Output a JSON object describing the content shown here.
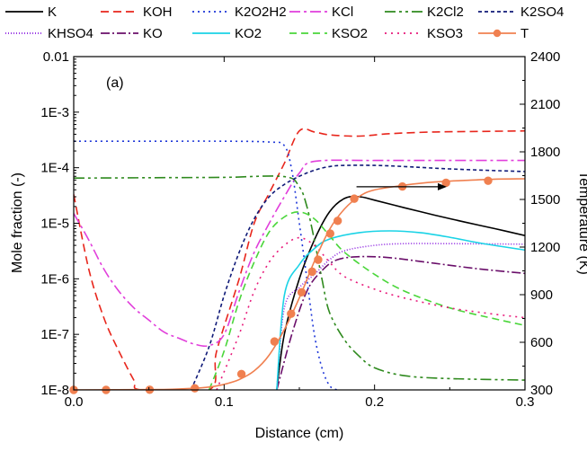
{
  "chart_data": {
    "type": "line",
    "panel_label": "(a)",
    "xlabel": "Distance (cm)",
    "ylabel": "Mole fraction (-)",
    "y2label": "Temperature (K)",
    "xlim": [
      0.0,
      0.3
    ],
    "ylim": [
      1e-08,
      0.01
    ],
    "y_scale": "log",
    "y2lim": [
      300,
      2400
    ],
    "x_ticks": [
      "0.0",
      "0.1",
      "0.2",
      "0.3"
    ],
    "y_ticks": [
      "1E-8",
      "1E-7",
      "1E-6",
      "1E-5",
      "1E-4",
      "1E-3",
      "0.01"
    ],
    "y2_ticks": [
      "300",
      "600",
      "900",
      "1200",
      "1500",
      "1800",
      "2100",
      "2400"
    ],
    "grid": false,
    "legend_position": "top, above plot",
    "series": [
      {
        "name": "K",
        "color": "#000000",
        "dash": "",
        "marker": false,
        "axis": "left",
        "points": [
          [
            0.135,
            1e-08
          ],
          [
            0.14,
            1e-07
          ],
          [
            0.15,
            1e-06
          ],
          [
            0.16,
            5e-06
          ],
          [
            0.17,
            1.6e-05
          ],
          [
            0.18,
            2.8e-05
          ],
          [
            0.19,
            3e-05
          ],
          [
            0.2,
            2.6e-05
          ],
          [
            0.22,
            1.9e-05
          ],
          [
            0.24,
            1.4e-05
          ],
          [
            0.26,
            1.05e-05
          ],
          [
            0.28,
            8e-06
          ],
          [
            0.3,
            6e-06
          ]
        ]
      },
      {
        "name": "KOH",
        "color": "#e8261c",
        "dash": "9,5",
        "marker": false,
        "axis": "left",
        "points": [
          [
            0.0,
            3.3e-05
          ],
          [
            0.01,
            1.5e-06
          ],
          [
            0.02,
            2e-07
          ],
          [
            0.03,
            5e-08
          ],
          [
            0.04,
            1.5e-08
          ],
          [
            0.045,
            1e-08
          ],
          [
            0.09,
            1e-08
          ],
          [
            0.095,
            5e-08
          ],
          [
            0.11,
            1e-06
          ],
          [
            0.12,
            1e-05
          ],
          [
            0.13,
            3.5e-05
          ],
          [
            0.14,
            0.00012
          ],
          [
            0.15,
            0.00046
          ],
          [
            0.16,
            0.00044
          ],
          [
            0.17,
            0.00039
          ],
          [
            0.19,
            0.00037
          ],
          [
            0.21,
            0.00041
          ],
          [
            0.24,
            0.00044
          ],
          [
            0.27,
            0.00045
          ],
          [
            0.3,
            0.00046
          ]
        ]
      },
      {
        "name": "K2O2H2",
        "color": "#1c35d8",
        "dash": "2,4",
        "marker": false,
        "axis": "left",
        "points": [
          [
            0.0,
            0.0003
          ],
          [
            0.05,
            0.0003
          ],
          [
            0.1,
            0.0003
          ],
          [
            0.13,
            0.00029
          ],
          [
            0.14,
            0.00025
          ],
          [
            0.145,
            9e-05
          ],
          [
            0.15,
            1e-05
          ],
          [
            0.155,
            1e-06
          ],
          [
            0.16,
            1e-07
          ],
          [
            0.165,
            2.5e-08
          ],
          [
            0.17,
            1.2e-08
          ],
          [
            0.175,
            1e-08
          ]
        ]
      },
      {
        "name": "KCl",
        "color": "#e13fdb",
        "dash": "12,4,3,4",
        "marker": false,
        "axis": "left",
        "points": [
          [
            0.0,
            1.5e-05
          ],
          [
            0.01,
            5e-06
          ],
          [
            0.02,
            1.5e-06
          ],
          [
            0.03,
            6e-07
          ],
          [
            0.04,
            3e-07
          ],
          [
            0.05,
            1.8e-07
          ],
          [
            0.06,
            1.1e-07
          ],
          [
            0.07,
            8.5e-08
          ],
          [
            0.08,
            6.7e-08
          ],
          [
            0.09,
            6.3e-08
          ],
          [
            0.1,
            1e-07
          ],
          [
            0.11,
            6e-07
          ],
          [
            0.12,
            3e-06
          ],
          [
            0.13,
            1e-05
          ],
          [
            0.14,
            3e-05
          ],
          [
            0.15,
            8e-05
          ],
          [
            0.16,
            0.00013
          ],
          [
            0.2,
            0.000135
          ],
          [
            0.25,
            0.000135
          ],
          [
            0.3,
            0.000135
          ]
        ]
      },
      {
        "name": "K2Cl2",
        "color": "#2f8a1e",
        "dash": "12,4,3,4,3,4",
        "marker": false,
        "axis": "left",
        "points": [
          [
            0.0,
            6.5e-05
          ],
          [
            0.05,
            6.6e-05
          ],
          [
            0.1,
            6.7e-05
          ],
          [
            0.14,
            6.9e-05
          ],
          [
            0.15,
            4.5e-05
          ],
          [
            0.155,
            2e-05
          ],
          [
            0.16,
            5e-06
          ],
          [
            0.165,
            1e-06
          ],
          [
            0.17,
            2.5e-07
          ],
          [
            0.18,
            8e-08
          ],
          [
            0.19,
            4e-08
          ],
          [
            0.2,
            2.5e-08
          ],
          [
            0.22,
            1.8e-08
          ],
          [
            0.25,
            1.6e-08
          ],
          [
            0.3,
            1.5e-08
          ]
        ]
      },
      {
        "name": "K2SO4",
        "color": "#101a78",
        "dash": "4,3",
        "marker": false,
        "axis": "left",
        "points": [
          [
            0.078,
            1e-08
          ],
          [
            0.09,
            6e-08
          ],
          [
            0.1,
            5e-07
          ],
          [
            0.11,
            3e-06
          ],
          [
            0.12,
            1.2e-05
          ],
          [
            0.13,
            3e-05
          ],
          [
            0.14,
            5e-05
          ],
          [
            0.15,
            7e-05
          ],
          [
            0.16,
            9e-05
          ],
          [
            0.17,
            0.000105
          ],
          [
            0.18,
            0.00011
          ],
          [
            0.2,
            0.00011
          ],
          [
            0.22,
            0.000105
          ],
          [
            0.25,
            9.5e-05
          ],
          [
            0.3,
            8.5e-05
          ]
        ]
      },
      {
        "name": "KHSO4",
        "color": "#8a1ce0",
        "dash": "1,2",
        "marker": false,
        "axis": "left",
        "points": [
          [
            0.135,
            1e-08
          ],
          [
            0.14,
            3e-07
          ],
          [
            0.15,
            7e-07
          ],
          [
            0.16,
            1.2e-06
          ],
          [
            0.17,
            2.2e-06
          ],
          [
            0.18,
            3.2e-06
          ],
          [
            0.2,
            4e-06
          ],
          [
            0.22,
            4.3e-06
          ],
          [
            0.25,
            4.3e-06
          ],
          [
            0.3,
            4.2e-06
          ]
        ]
      },
      {
        "name": "KO",
        "color": "#6a0e6a",
        "dash": "10,3,2,3",
        "marker": false,
        "axis": "left",
        "points": [
          [
            0.135,
            1e-08
          ],
          [
            0.145,
            1e-07
          ],
          [
            0.155,
            6e-07
          ],
          [
            0.165,
            1.4e-06
          ],
          [
            0.175,
            2.2e-06
          ],
          [
            0.19,
            2.5e-06
          ],
          [
            0.21,
            2.4e-06
          ],
          [
            0.24,
            1.9e-06
          ],
          [
            0.27,
            1.5e-06
          ],
          [
            0.3,
            1.25e-06
          ]
        ]
      },
      {
        "name": "KO2",
        "color": "#1ad3e6",
        "dash": "",
        "marker": false,
        "axis": "left",
        "points": [
          [
            0.135,
            1e-08
          ],
          [
            0.14,
            5e-07
          ],
          [
            0.15,
            1.8e-06
          ],
          [
            0.16,
            3.5e-06
          ],
          [
            0.17,
            5.2e-06
          ],
          [
            0.19,
            6.8e-06
          ],
          [
            0.21,
            7.3e-06
          ],
          [
            0.23,
            6.8e-06
          ],
          [
            0.25,
            5.6e-06
          ],
          [
            0.27,
            4.4e-06
          ],
          [
            0.3,
            3.3e-06
          ]
        ]
      },
      {
        "name": "KSO2",
        "color": "#4ad63a",
        "dash": "8,5",
        "marker": false,
        "axis": "left",
        "points": [
          [
            0.09,
            1e-08
          ],
          [
            0.1,
            5e-08
          ],
          [
            0.11,
            4e-07
          ],
          [
            0.12,
            2e-06
          ],
          [
            0.13,
            7e-06
          ],
          [
            0.14,
            1.3e-05
          ],
          [
            0.15,
            1.6e-05
          ],
          [
            0.16,
            1.2e-05
          ],
          [
            0.17,
            6e-06
          ],
          [
            0.18,
            3e-06
          ],
          [
            0.2,
            1.2e-06
          ],
          [
            0.22,
            6e-07
          ],
          [
            0.25,
            3e-07
          ],
          [
            0.28,
            1.9e-07
          ],
          [
            0.3,
            1.45e-07
          ]
        ]
      },
      {
        "name": "KSO3",
        "color": "#e8197a",
        "dash": "2,5",
        "marker": false,
        "axis": "left",
        "points": [
          [
            0.095,
            1e-08
          ],
          [
            0.11,
            1e-07
          ],
          [
            0.12,
            6e-07
          ],
          [
            0.13,
            2e-06
          ],
          [
            0.14,
            4e-06
          ],
          [
            0.15,
            5.5e-06
          ],
          [
            0.16,
            4e-06
          ],
          [
            0.17,
            2e-06
          ],
          [
            0.18,
            1.1e-06
          ],
          [
            0.2,
            6.5e-07
          ],
          [
            0.22,
            4.5e-07
          ],
          [
            0.25,
            3e-07
          ],
          [
            0.28,
            2.3e-07
          ],
          [
            0.3,
            2e-07
          ]
        ]
      },
      {
        "name": "T",
        "color": "#f08050",
        "dash": "",
        "marker": true,
        "axis": "right",
        "points": [
          [
            0.0,
            300
          ],
          [
            0.03,
            301
          ],
          [
            0.06,
            303
          ],
          [
            0.08,
            310
          ],
          [
            0.09,
            318
          ],
          [
            0.1,
            335
          ],
          [
            0.11,
            365
          ],
          [
            0.12,
            420
          ],
          [
            0.13,
            520
          ],
          [
            0.14,
            680
          ],
          [
            0.15,
            880
          ],
          [
            0.16,
            1110
          ],
          [
            0.17,
            1310
          ],
          [
            0.18,
            1440
          ],
          [
            0.19,
            1520
          ],
          [
            0.2,
            1560
          ],
          [
            0.22,
            1590
          ],
          [
            0.24,
            1610
          ],
          [
            0.26,
            1620
          ],
          [
            0.28,
            1628
          ],
          [
            0.3,
            1630
          ]
        ],
        "marker_points": [
          [
            0.0,
            300
          ],
          [
            0.0215,
            300
          ],
          [
            0.0505,
            301
          ],
          [
            0.0805,
            310
          ],
          [
            0.1115,
            400
          ],
          [
            0.1335,
            605
          ],
          [
            0.1445,
            780
          ],
          [
            0.1515,
            915
          ],
          [
            0.1585,
            1045
          ],
          [
            0.1625,
            1120
          ],
          [
            0.1705,
            1285
          ],
          [
            0.1755,
            1365
          ],
          [
            0.1865,
            1505
          ],
          [
            0.2185,
            1582
          ],
          [
            0.2475,
            1605
          ],
          [
            0.2755,
            1618
          ]
        ]
      }
    ],
    "arrow": {
      "from": [
        0.188,
        1580
      ],
      "to": [
        0.248,
        1580
      ],
      "axis": "right"
    }
  }
}
